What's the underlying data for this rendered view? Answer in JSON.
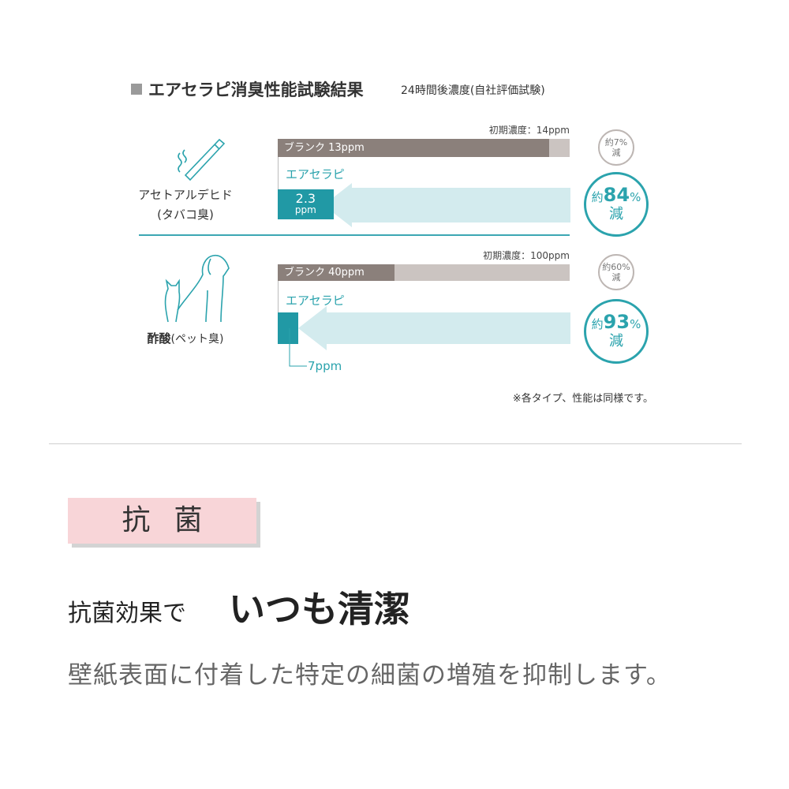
{
  "header": {
    "title": "エアセラピ消臭性能試験結果",
    "subtitle": "24時間後濃度(自社評価試験)"
  },
  "chart_data": {
    "type": "bar",
    "title": "エアセラピ消臭性能試験結果",
    "subtitle": "24時間後濃度(自社評価試験)",
    "unit": "ppm",
    "groups": [
      {
        "category": "アセトアルデヒド",
        "category_sub": "(タバコ臭)",
        "initial_label": "初期濃度：14ppm",
        "initial": 14,
        "blank_label": "ブランク 13ppm",
        "blank": 13,
        "product_name": "エアセラピ",
        "product": 2.3,
        "product_value_label": "2.3",
        "product_unit_label": "ppm",
        "blank_reduction": {
          "prefix": "約",
          "value": "7%",
          "suffix": "減"
        },
        "product_reduction": {
          "prefix": "約",
          "value": "84",
          "pct": "%",
          "suffix": "減"
        }
      },
      {
        "category": "酢酸",
        "category_sub": "(ペット臭)",
        "initial_label": "初期濃度：100ppm",
        "initial": 100,
        "blank_label": "ブランク  40ppm",
        "blank": 40,
        "product_name": "エアセラピ",
        "product": 7,
        "product_value_label": "7ppm",
        "blank_reduction": {
          "prefix": "約",
          "value": "60%",
          "suffix": "減"
        },
        "product_reduction": {
          "prefix": "約",
          "value": "93",
          "pct": "%",
          "suffix": "減"
        }
      }
    ],
    "colors": {
      "blank": "#8b807b",
      "initial": "#cbc4c1",
      "product": "#2199a5",
      "arrow": "#d3ebee"
    }
  },
  "footnote": "※各タイプ、性能は同様です。",
  "section": {
    "badge": "抗菌",
    "headline_small": "抗菌効果で",
    "headline_large": "いつも清潔",
    "description": "壁紙表面に付着した特定の細菌の増殖を抑制します。"
  }
}
